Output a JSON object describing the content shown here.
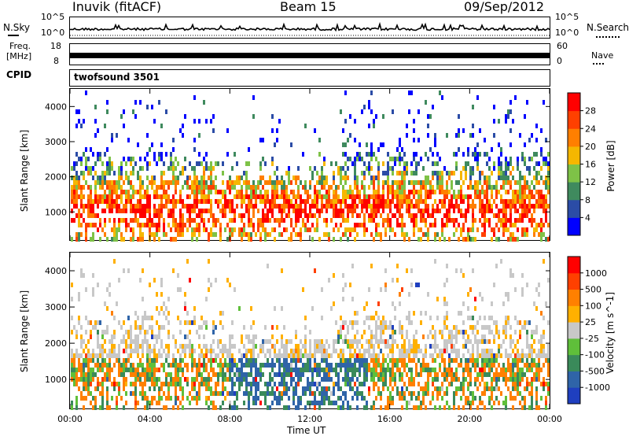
{
  "header": {
    "station": "Inuvik (fitACF)",
    "beam": "Beam 15",
    "date": "09/Sep/2012"
  },
  "noise_panel": {
    "left_label": "N.Sky",
    "right_label": "N.Search",
    "left_ticks": [
      "10^5",
      "10^0"
    ],
    "right_ticks": [
      "10^5",
      "10^0"
    ]
  },
  "freq_panel": {
    "left_label_line1": "Freq.",
    "left_label_line2": "[MHz]",
    "left_ticks": [
      "18",
      "8"
    ],
    "right_label": "Nave",
    "right_ticks": [
      "60",
      "0"
    ]
  },
  "cpid": {
    "label": "CPID",
    "value": "twofsound 3501"
  },
  "chart_data": [
    {
      "type": "heatmap",
      "parameter": "Power",
      "ylabel": "Slant Range [km]",
      "xlabel": "Time UT",
      "ylim": [
        200,
        4500
      ],
      "y_ticks": [
        "1000",
        "2000",
        "3000",
        "4000"
      ],
      "x_ticks": [
        "00:00",
        "04:00",
        "08:00",
        "12:00",
        "16:00",
        "20:00",
        "00:00"
      ],
      "colorbar": {
        "label": "Power [dB]",
        "ticks": [
          "4",
          "8",
          "12",
          "16",
          "20",
          "24",
          "28"
        ],
        "colors": [
          "#0000ff",
          "#2b4ca6",
          "#3f8a5e",
          "#7ec247",
          "#f5b700",
          "#ff7f00",
          "#ff4000",
          "#ff0000"
        ]
      }
    },
    {
      "type": "heatmap",
      "parameter": "Velocity",
      "ylabel": "Slant Range [km]",
      "xlabel": "Time UT",
      "ylim": [
        200,
        4500
      ],
      "y_ticks": [
        "1000",
        "2000",
        "3000",
        "4000"
      ],
      "x_ticks": [
        "00:00",
        "04:00",
        "08:00",
        "12:00",
        "16:00",
        "20:00",
        "00:00"
      ],
      "colorbar": {
        "label": "Velocity [m s^-1]",
        "ticks": [
          "1000",
          "500",
          "100",
          "25",
          "-25",
          "-100",
          "-500",
          "-1000"
        ],
        "colors": [
          "#1f3fbf",
          "#2f64a8",
          "#3a8a5a",
          "#5fbf3a",
          "#c8c8c8",
          "#ffb000",
          "#ff8000",
          "#ff4000",
          "#ff0000"
        ]
      }
    }
  ],
  "x_axis_title": "Time UT"
}
